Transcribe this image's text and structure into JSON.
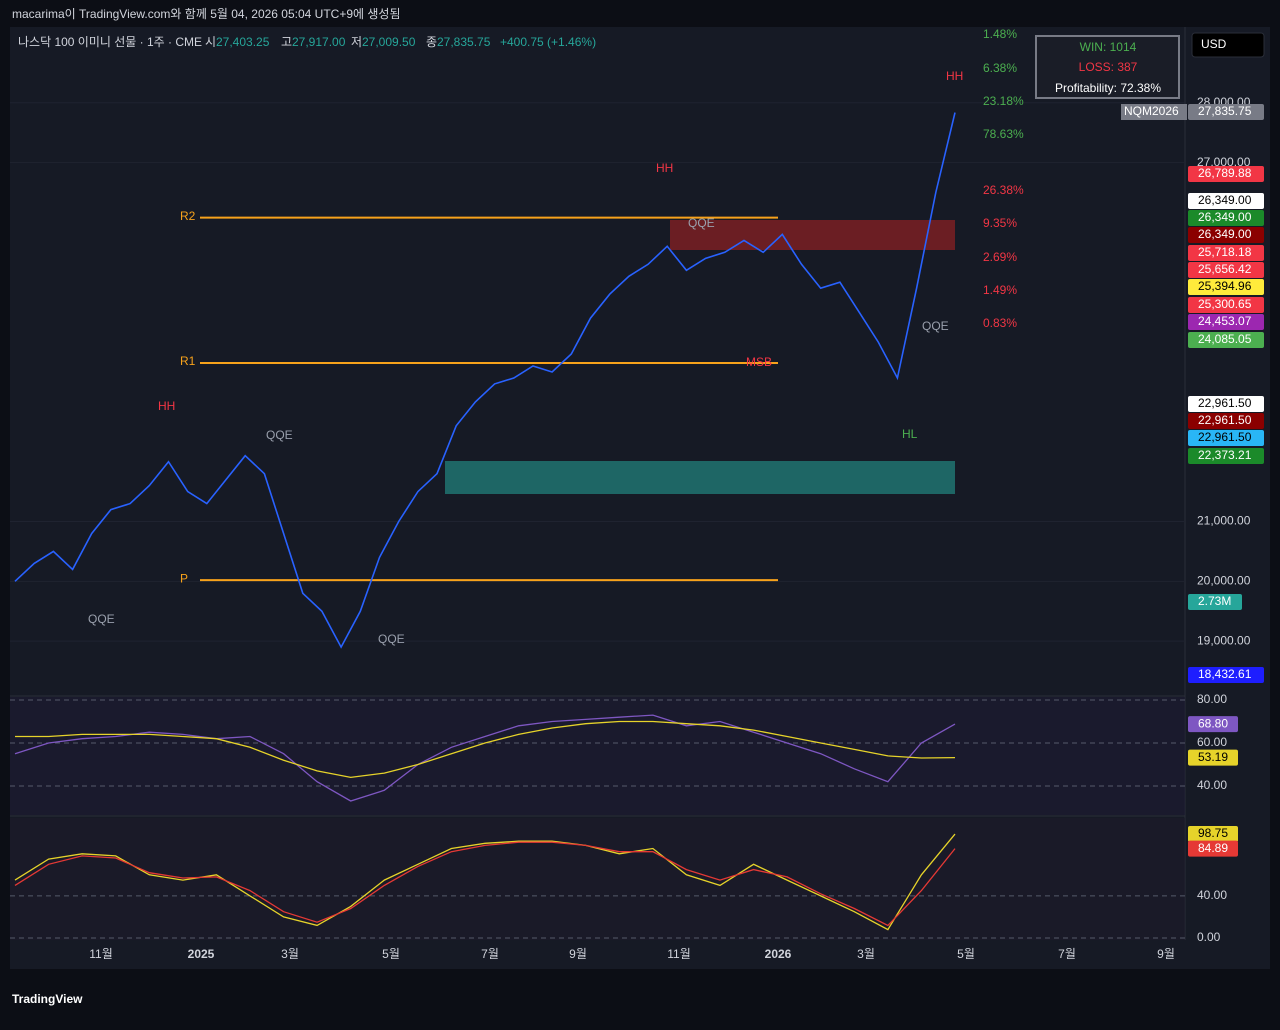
{
  "header": {
    "user_line": "macarima이 TradingView.com와 함께 5월 04, 2026 05:04 UTC+9에 생성됨"
  },
  "symbol": {
    "name": "나스닥 100 이미니 선물 · 1주 · CME",
    "o_label": "시",
    "o": "27,403.25",
    "h_label": "고",
    "h": "27,917.00",
    "l_label": "저",
    "l": "27,009.50",
    "c_label": "종",
    "c": "27,835.75",
    "change": "+400.75 (+1.46%)"
  },
  "currency": "USD",
  "stats": {
    "win": "WIN: 1014",
    "loss": "LOSS: 387",
    "profitability": "Profitability: 72.38%"
  },
  "percent_labels": [
    {
      "text": "1.48%",
      "color": "#4caf50"
    },
    {
      "text": "6.38%",
      "color": "#4caf50"
    },
    {
      "text": "23.18%",
      "color": "#4caf50"
    },
    {
      "text": "78.63%",
      "color": "#4caf50"
    },
    {
      "text": "26.38%",
      "color": "#f23645"
    },
    {
      "text": "9.35%",
      "color": "#f23645"
    },
    {
      "text": "2.69%",
      "color": "#f23645"
    },
    {
      "text": "1.49%",
      "color": "#f23645"
    },
    {
      "text": "0.83%",
      "color": "#f23645"
    }
  ],
  "annotations": [
    "QQE",
    "QQE",
    "QQE",
    "QQE",
    "QQE",
    "HH",
    "HH",
    "HH",
    "HL",
    "MSB"
  ],
  "time_labels": [
    "11월",
    "2025",
    "3월",
    "5월",
    "7월",
    "9월",
    "11월",
    "2026",
    "3월",
    "5월",
    "7월",
    "9월"
  ],
  "brand": "TradingView",
  "chart_data": [
    {
      "type": "line",
      "series": [
        {
          "name": "NQM2026",
          "color": "#2962ff",
          "values": [
            20000,
            20300,
            20500,
            20200,
            20800,
            21200,
            21300,
            21600,
            22000,
            21500,
            21300,
            21700,
            22100,
            21800,
            20800,
            19800,
            19500,
            18900,
            19500,
            20400,
            21000,
            21500,
            21800,
            22600,
            23000,
            23300,
            23400,
            23600,
            23500,
            23800,
            24400,
            24800,
            25100,
            25300,
            25600,
            25200,
            25400,
            25500,
            25700,
            25500,
            25800,
            25300,
            24900,
            25000,
            24500,
            24000,
            23400,
            24900,
            26500,
            27835.75
          ]
        }
      ],
      "ylim": [
        18100,
        29250
      ],
      "yticks": [
        {
          "value": 28000,
          "label": "28,000.00"
        },
        {
          "value": 27000,
          "label": "27,000.00"
        },
        {
          "value": 21000,
          "label": "21,000.00"
        },
        {
          "value": 20000,
          "label": "20,000.00"
        },
        {
          "value": 19000,
          "label": "19,000.00"
        }
      ],
      "levels": [
        {
          "name": "R2",
          "value": 26080,
          "color": "#f7a21b"
        },
        {
          "name": "R1",
          "value": 23650,
          "color": "#f7a21b"
        },
        {
          "name": "P",
          "value": 20020,
          "color": "#f7a21b"
        }
      ],
      "price_labels": [
        {
          "value": 27835.75,
          "label": "27,835.75",
          "bg": "#787b86"
        },
        {
          "value": 26789.88,
          "label": "26,789.88",
          "bg": "#f23645"
        },
        {
          "value": 26349,
          "label": "26,349.00",
          "bg": "#ffffff"
        },
        {
          "value": 26349,
          "label": "26,349.00",
          "bg": "#1b8a2a"
        },
        {
          "value": 26349,
          "label": "26,349.00",
          "bg": "#8b0000"
        },
        {
          "value": 25718.18,
          "label": "25,718.18",
          "bg": "#f23645"
        },
        {
          "value": 25656.42,
          "label": "25,656.42",
          "bg": "#f23645"
        },
        {
          "value": 25394.96,
          "label": "25,394.96",
          "bg": "#ffeb3b"
        },
        {
          "value": 25300.65,
          "label": "25,300.65",
          "bg": "#f23645"
        },
        {
          "value": 24453.07,
          "label": "24,453.07",
          "bg": "#9c27b0"
        },
        {
          "value": 24085.05,
          "label": "24,085.05",
          "bg": "#4caf50"
        },
        {
          "value": 22961.5,
          "label": "22,961.50",
          "bg": "#ffffff"
        },
        {
          "value": 22961.5,
          "label": "22,961.50",
          "bg": "#8b0000"
        },
        {
          "value": 22961.5,
          "label": "22,961.50",
          "bg": "#29b6f6"
        },
        {
          "value": 22373.21,
          "label": "22,373.21",
          "bg": "#1b8a2a"
        },
        {
          "value": 18432.61,
          "label": "18,432.61",
          "bg": "#1e1eff"
        }
      ],
      "volume_label": "2.73M"
    },
    {
      "type": "line",
      "series": [
        {
          "color": "#7e57c2",
          "values": [
            55,
            60,
            62,
            63,
            65,
            64,
            62,
            63,
            55,
            42,
            33,
            38,
            50,
            58,
            63,
            68,
            70,
            71,
            72,
            73,
            68,
            70,
            65,
            60,
            55,
            48,
            42,
            60,
            68.8
          ]
        },
        {
          "color": "#e6d32a",
          "values": [
            63,
            63,
            64,
            64,
            64,
            63,
            62,
            58,
            52,
            47,
            44,
            46,
            50,
            55,
            60,
            64,
            67,
            69,
            70,
            70,
            69,
            68,
            66,
            63,
            60,
            57,
            54,
            53,
            53.19
          ]
        }
      ],
      "ylim": [
        26.5,
        81.4
      ],
      "yticks": [
        {
          "value": 80,
          "label": "80.00"
        },
        {
          "value": 60,
          "label": "60.00"
        },
        {
          "value": 40,
          "label": "40.00"
        }
      ],
      "value_labels": [
        "68.80",
        "53.19"
      ]
    },
    {
      "type": "line",
      "series": [
        {
          "color": "#e6d32a",
          "values": [
            55,
            75,
            80,
            78,
            60,
            55,
            60,
            40,
            20,
            12,
            30,
            55,
            70,
            85,
            90,
            92,
            92,
            88,
            80,
            85,
            60,
            50,
            70,
            55,
            40,
            25,
            8,
            60,
            98.75
          ]
        },
        {
          "color": "#e53935",
          "values": [
            50,
            70,
            78,
            76,
            62,
            57,
            58,
            45,
            25,
            15,
            28,
            50,
            68,
            82,
            88,
            91,
            91,
            88,
            82,
            82,
            65,
            55,
            65,
            58,
            42,
            28,
            12,
            45,
            84.89
          ]
        }
      ],
      "ylim": [
        0,
        114
      ],
      "yticks": [
        {
          "value": 40,
          "label": "40.00"
        },
        {
          "value": 0,
          "label": "0.00"
        }
      ],
      "value_labels": [
        "98.75",
        "84.89"
      ]
    }
  ]
}
